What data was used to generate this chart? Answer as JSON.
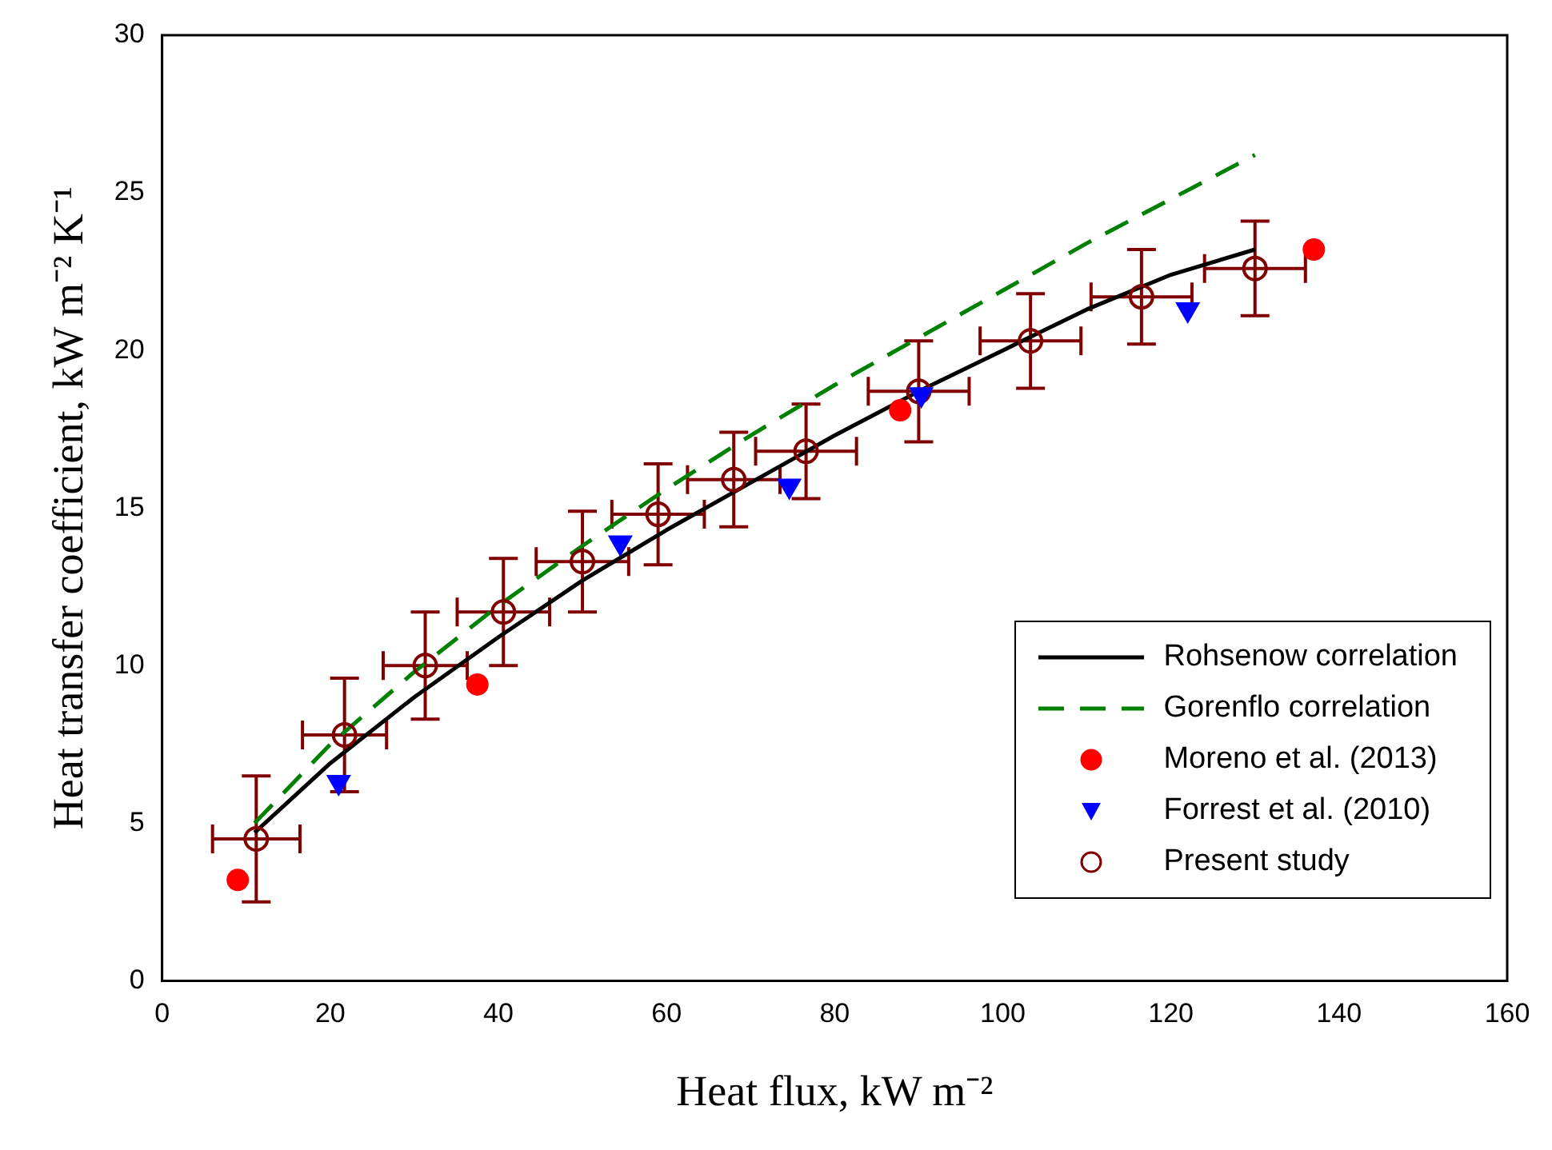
{
  "chart_data": {
    "type": "line",
    "xlabel": "Heat flux, kW m⁻²",
    "ylabel": "Heat transfer coefficient, kW m⁻² K⁻¹",
    "xlim": [
      0,
      160
    ],
    "xticks": [
      0,
      20,
      40,
      60,
      80,
      100,
      120,
      140,
      160
    ],
    "ylim": [
      0,
      30
    ],
    "yticks": [
      0,
      5,
      10,
      15,
      20,
      25,
      30
    ],
    "grid": false,
    "legend": "bottom right",
    "series": [
      {
        "name": "Rohsenow correlation",
        "type": "line",
        "color": "#000000",
        "line_style": "solid",
        "marker": "none",
        "x": [
          11,
          20,
          30,
          40,
          50,
          60,
          70,
          80,
          90,
          100,
          110,
          120,
          130
        ],
        "values": [
          4.7,
          6.9,
          9.0,
          10.9,
          12.7,
          14.3,
          15.8,
          17.3,
          18.7,
          20.0,
          21.3,
          22.4,
          23.2
        ]
      },
      {
        "name": "Gorenflo correlation",
        "type": "line",
        "color": "#008000",
        "line_style": "dashed",
        "marker": "none",
        "x": [
          11,
          20,
          30,
          40,
          50,
          60,
          70,
          80,
          90,
          100,
          110,
          120,
          130
        ],
        "values": [
          5.0,
          7.5,
          9.8,
          11.9,
          13.8,
          15.6,
          17.3,
          18.9,
          20.4,
          21.9,
          23.4,
          24.8,
          26.2
        ]
      },
      {
        "name": "Moreno et al. (2013)",
        "type": "scatter",
        "color": "#ff0000",
        "marker": "circle",
        "x": [
          9,
          37.5,
          87.8,
          137
        ],
        "values": [
          3.2,
          9.4,
          18.1,
          23.2
        ]
      },
      {
        "name": "Forrest et al. (2010)",
        "type": "scatter",
        "color": "#0000ff",
        "marker": "triangle",
        "x": [
          21,
          54.5,
          74.6,
          90.3,
          122
        ],
        "values": [
          6.3,
          13.9,
          15.7,
          18.6,
          21.3
        ]
      },
      {
        "name": "Present study",
        "type": "scatter",
        "color": "#800000",
        "marker": "circle",
        "x": [
          11.2,
          21.7,
          31.3,
          40.6,
          50,
          59,
          68,
          76.6,
          90,
          103.3,
          116.5,
          130
        ],
        "values": [
          4.5,
          7.8,
          10.0,
          11.7,
          13.3,
          14.8,
          15.9,
          16.8,
          18.7,
          20.3,
          21.7,
          22.6
        ],
        "errors": [
          2,
          1.8,
          1.7,
          1.7,
          1.6,
          1.6,
          1.5,
          1.5,
          1.6,
          1.5,
          1.5,
          1.5
        ],
        "xerrors": [
          5.2,
          5,
          5,
          5.5,
          5.5,
          5.5,
          5.5,
          6,
          6,
          6,
          6,
          6
        ]
      }
    ]
  }
}
